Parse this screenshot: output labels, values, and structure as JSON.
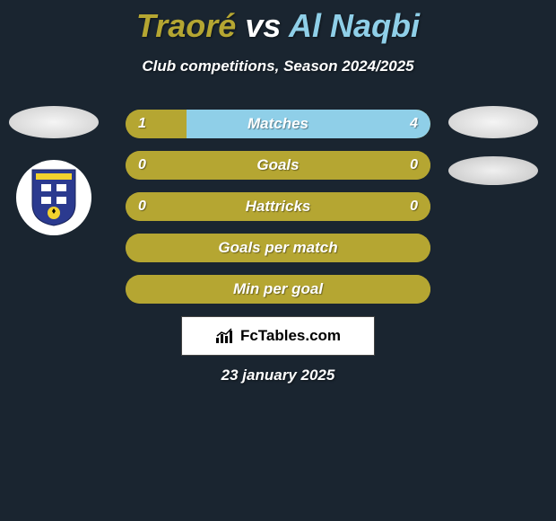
{
  "header": {
    "title_left": "Traoré",
    "title_vs": " vs ",
    "title_right": "Al Naqbi",
    "subtitle": "Club competitions, Season 2024/2025",
    "left_color": "#b5a632",
    "right_color": "#8fcfe8"
  },
  "colors": {
    "left_bar": "#b5a632",
    "right_bar": "#8fcfe8",
    "bar_bg_when_full": "#b5a632",
    "background": "#1a2530",
    "text": "#ffffff"
  },
  "bars": [
    {
      "label": "Matches",
      "left_val": "1",
      "right_val": "4",
      "left_pct": 20,
      "right_pct": 80
    },
    {
      "label": "Goals",
      "left_val": "0",
      "right_val": "0",
      "left_pct": 100,
      "right_pct": 0
    },
    {
      "label": "Hattricks",
      "left_val": "0",
      "right_val": "0",
      "left_pct": 100,
      "right_pct": 0
    },
    {
      "label": "Goals per match",
      "left_val": "",
      "right_val": "",
      "left_pct": 100,
      "right_pct": 0
    },
    {
      "label": "Min per goal",
      "left_val": "",
      "right_val": "",
      "left_pct": 100,
      "right_pct": 0
    }
  ],
  "watermark": {
    "brand": "FcTables.com"
  },
  "footer": {
    "date": "23 january 2025"
  },
  "club_badge": {
    "shield_bg": "#2b3a8f",
    "stripe_color": "#f2d22e",
    "cross_bg": "#ffffff",
    "cross_fg": "#2b3a8f",
    "ball_bg": "#000000"
  }
}
